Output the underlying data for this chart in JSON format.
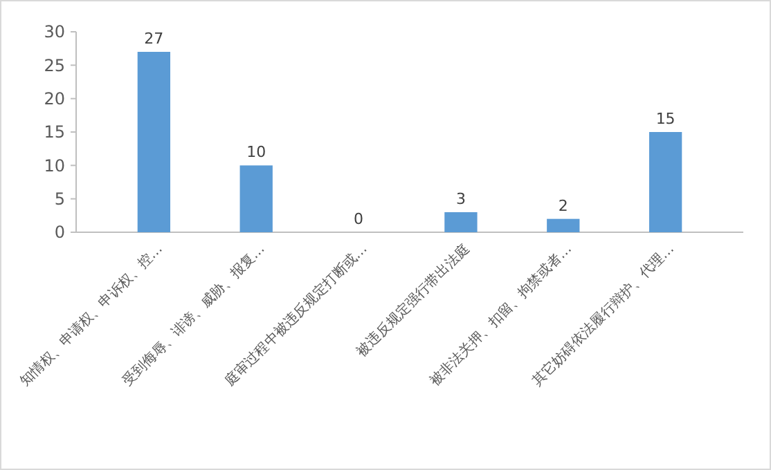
{
  "chart_data": {
    "type": "bar",
    "categories": [
      "知情权、申请权、申诉权、控…",
      "受到侮辱、诽谤、威胁、报复…",
      "庭审过程中被违反规定打断或…",
      "被违反规定强行带出法庭",
      "被非法关押、扣留、拘禁或者…",
      "其它妨碍依法履行辩护、代理…"
    ],
    "values": [
      27,
      10,
      0,
      3,
      2,
      15
    ],
    "color": "#5b9bd5",
    "data_labels": true,
    "ylim": [
      0,
      30
    ],
    "yticks": [
      0,
      5,
      10,
      15,
      20,
      25,
      30
    ],
    "grid": false
  }
}
